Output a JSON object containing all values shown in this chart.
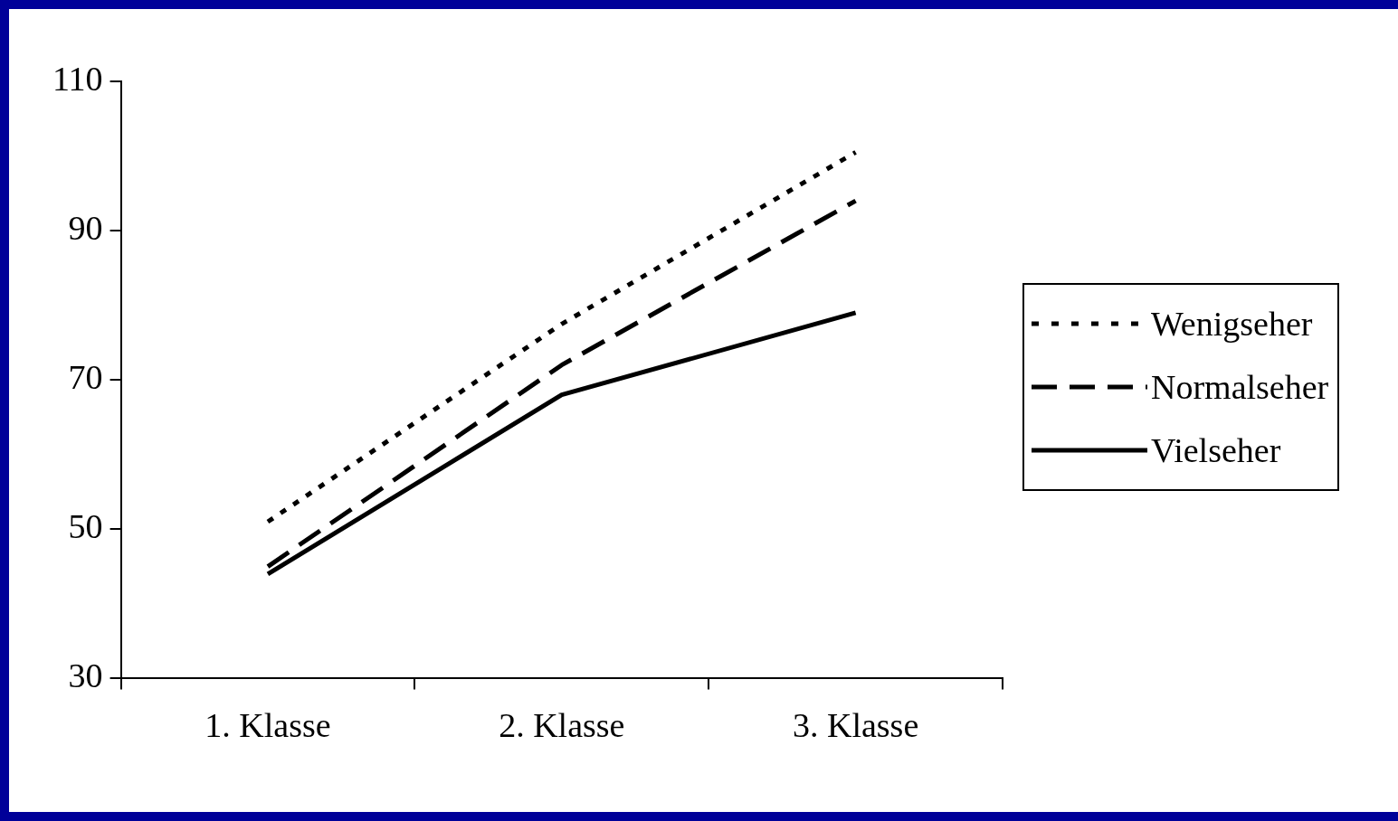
{
  "chart_data": {
    "type": "line",
    "categories": [
      "1. Klasse",
      "2. Klasse",
      "3. Klasse"
    ],
    "series": [
      {
        "name": "Wenigseher",
        "color": "#000000",
        "line_style": "dotted",
        "values": [
          51,
          77.5,
          100.5
        ]
      },
      {
        "name": "Normalseher",
        "color": "#000000",
        "line_style": "dashed",
        "values": [
          45,
          72,
          94
        ]
      },
      {
        "name": "Vielseher",
        "color": "#000000",
        "line_style": "solid",
        "values": [
          44,
          68,
          79
        ]
      }
    ],
    "ylim": [
      30,
      110
    ],
    "yticks": [
      30,
      50,
      70,
      90,
      110
    ],
    "grid": false,
    "legend": "right",
    "marker": "none"
  }
}
